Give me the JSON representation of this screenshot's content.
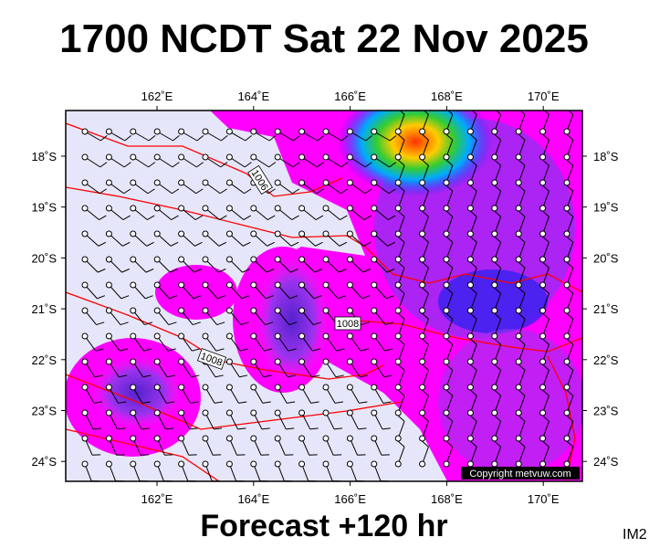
{
  "header": {
    "title": "1700 NCDT Sat 22 Nov 2025"
  },
  "map": {
    "lon_labels": [
      "162˚E",
      "164˚E",
      "166˚E",
      "168˚E",
      "170˚E"
    ],
    "lat_labels": [
      "18˚S",
      "19˚S",
      "20˚S",
      "21˚S",
      "22˚S",
      "23˚S",
      "24˚S"
    ],
    "isobar_labels": [
      "1006",
      "1008",
      "1008"
    ],
    "copyright": "Copyright metvuw.com"
  },
  "footer": {
    "forecast": "Forecast +120 hr",
    "code": "IM2"
  }
}
